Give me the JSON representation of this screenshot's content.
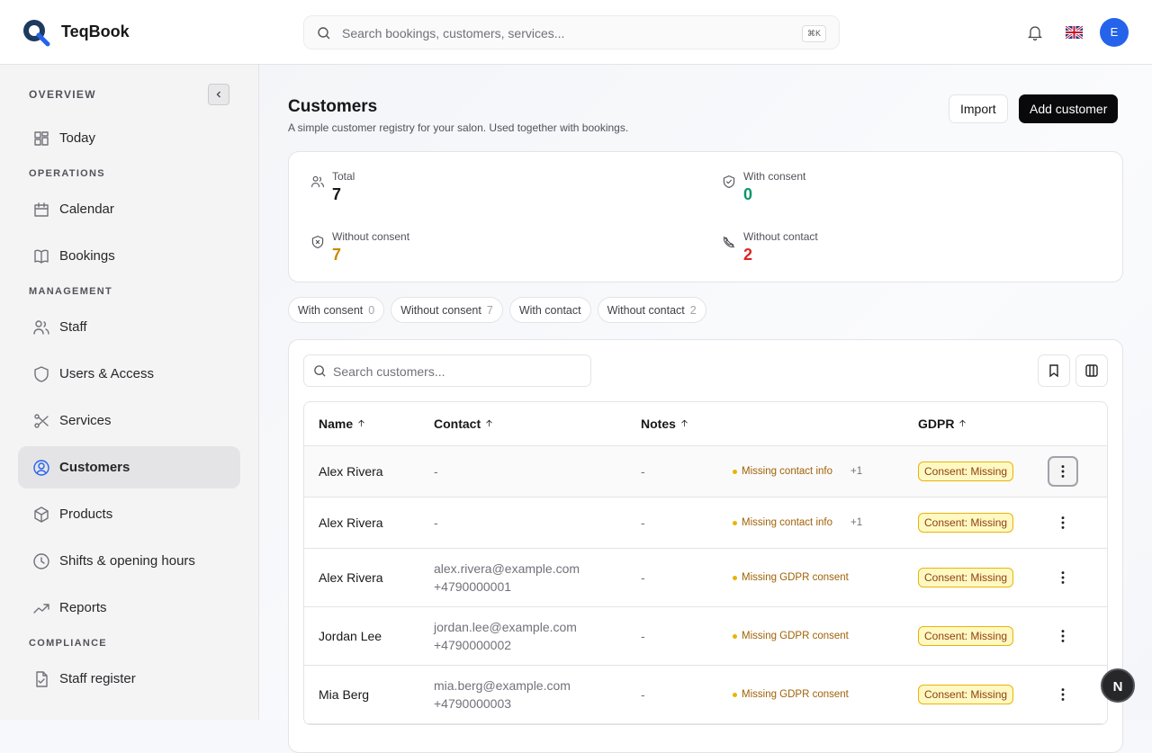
{
  "header": {
    "brand": "TeqBook",
    "search_placeholder": "Search bookings, customers, services...",
    "shortcut": "⌘K",
    "avatar": "E"
  },
  "sidebar": {
    "sections": [
      {
        "title": "OVERVIEW",
        "items": [
          {
            "label": "Today"
          }
        ]
      },
      {
        "title": "OPERATIONS",
        "items": [
          {
            "label": "Calendar"
          },
          {
            "label": "Bookings"
          }
        ]
      },
      {
        "title": "MANAGEMENT",
        "items": [
          {
            "label": "Staff"
          },
          {
            "label": "Users & Access"
          },
          {
            "label": "Services"
          },
          {
            "label": "Customers",
            "active": true
          },
          {
            "label": "Products"
          },
          {
            "label": "Shifts & opening hours"
          },
          {
            "label": "Reports"
          }
        ]
      },
      {
        "title": "COMPLIANCE",
        "items": [
          {
            "label": "Staff register"
          }
        ]
      }
    ]
  },
  "page": {
    "title": "Customers",
    "subtitle": "A simple customer registry for your salon. Used together with bookings.",
    "buttons": [
      "Import",
      "Add customer"
    ]
  },
  "stats": [
    {
      "label": "Total",
      "value": 7
    },
    {
      "label": "With consent",
      "value": 0
    },
    {
      "label": "Without consent",
      "value": 7
    },
    {
      "label": "Without contact",
      "value": 2
    }
  ],
  "filters": [
    {
      "label": "With consent",
      "count": 0
    },
    {
      "label": "Without consent",
      "count": 7
    },
    {
      "label": "With contact"
    },
    {
      "label": "Without contact",
      "count": 2
    }
  ],
  "table": {
    "search_placeholder": "Search customers...",
    "columns": [
      "Name",
      "Contact",
      "Notes",
      "GDPR"
    ],
    "rows": [
      {
        "name": "Alex Rivera",
        "contact": [
          "-"
        ],
        "notes": "-",
        "issue": "Missing contact info",
        "extra": "+1",
        "gdpr": "Consent: Missing"
      },
      {
        "name": "Alex Rivera",
        "contact": [
          "-"
        ],
        "notes": "-",
        "issue": "Missing contact info",
        "extra": "+1",
        "gdpr": "Consent: Missing"
      },
      {
        "name": "Alex Rivera",
        "contact": [
          "alex.rivera@example.com",
          "+4790000001"
        ],
        "notes": "-",
        "issue": "Missing GDPR consent",
        "gdpr": "Consent: Missing"
      },
      {
        "name": "Jordan Lee",
        "contact": [
          "jordan.lee@example.com",
          "+4790000002"
        ],
        "notes": "-",
        "issue": "Missing GDPR consent",
        "gdpr": "Consent: Missing"
      },
      {
        "name": "Mia Berg",
        "contact": [
          "mia.berg@example.com",
          "+4790000003"
        ],
        "notes": "-",
        "issue": "Missing GDPR consent",
        "gdpr": "Consent: Missing"
      }
    ]
  }
}
